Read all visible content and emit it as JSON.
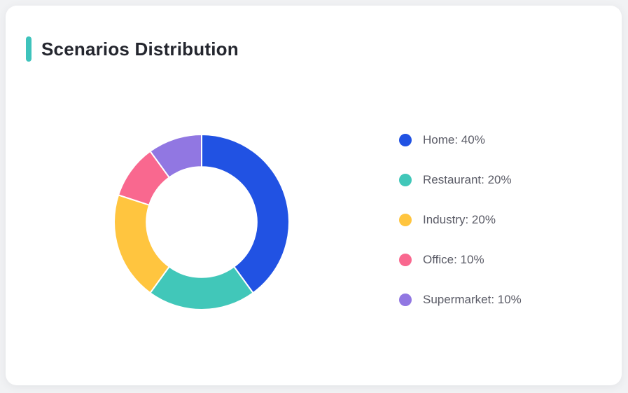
{
  "page": {
    "background": "#f1f2f4"
  },
  "card": {
    "title": "Scenarios Distribution",
    "accent_color": "#3EC3BC",
    "background": "#ffffff"
  },
  "chart_data": {
    "type": "pie",
    "title": "Scenarios Distribution",
    "donut": true,
    "inner_radius_ratio": 0.63,
    "start_angle_deg": 0,
    "direction": "clockwise",
    "legend_position": "right",
    "slice_gap_color": "#ffffff",
    "series": [
      {
        "name": "Home",
        "value": 40,
        "color": "#2152E3",
        "label": "Home: 40%"
      },
      {
        "name": "Restaurant",
        "value": 20,
        "color": "#41C7B9",
        "label": "Restaurant: 20%"
      },
      {
        "name": "Industry",
        "value": 20,
        "color": "#FFC53F",
        "label": "Industry: 20%"
      },
      {
        "name": "Office",
        "value": 10,
        "color": "#F9688F",
        "label": "Office: 10%"
      },
      {
        "name": "Supermarket",
        "value": 10,
        "color": "#9177E2",
        "label": "Supermarket: 10%"
      }
    ]
  }
}
